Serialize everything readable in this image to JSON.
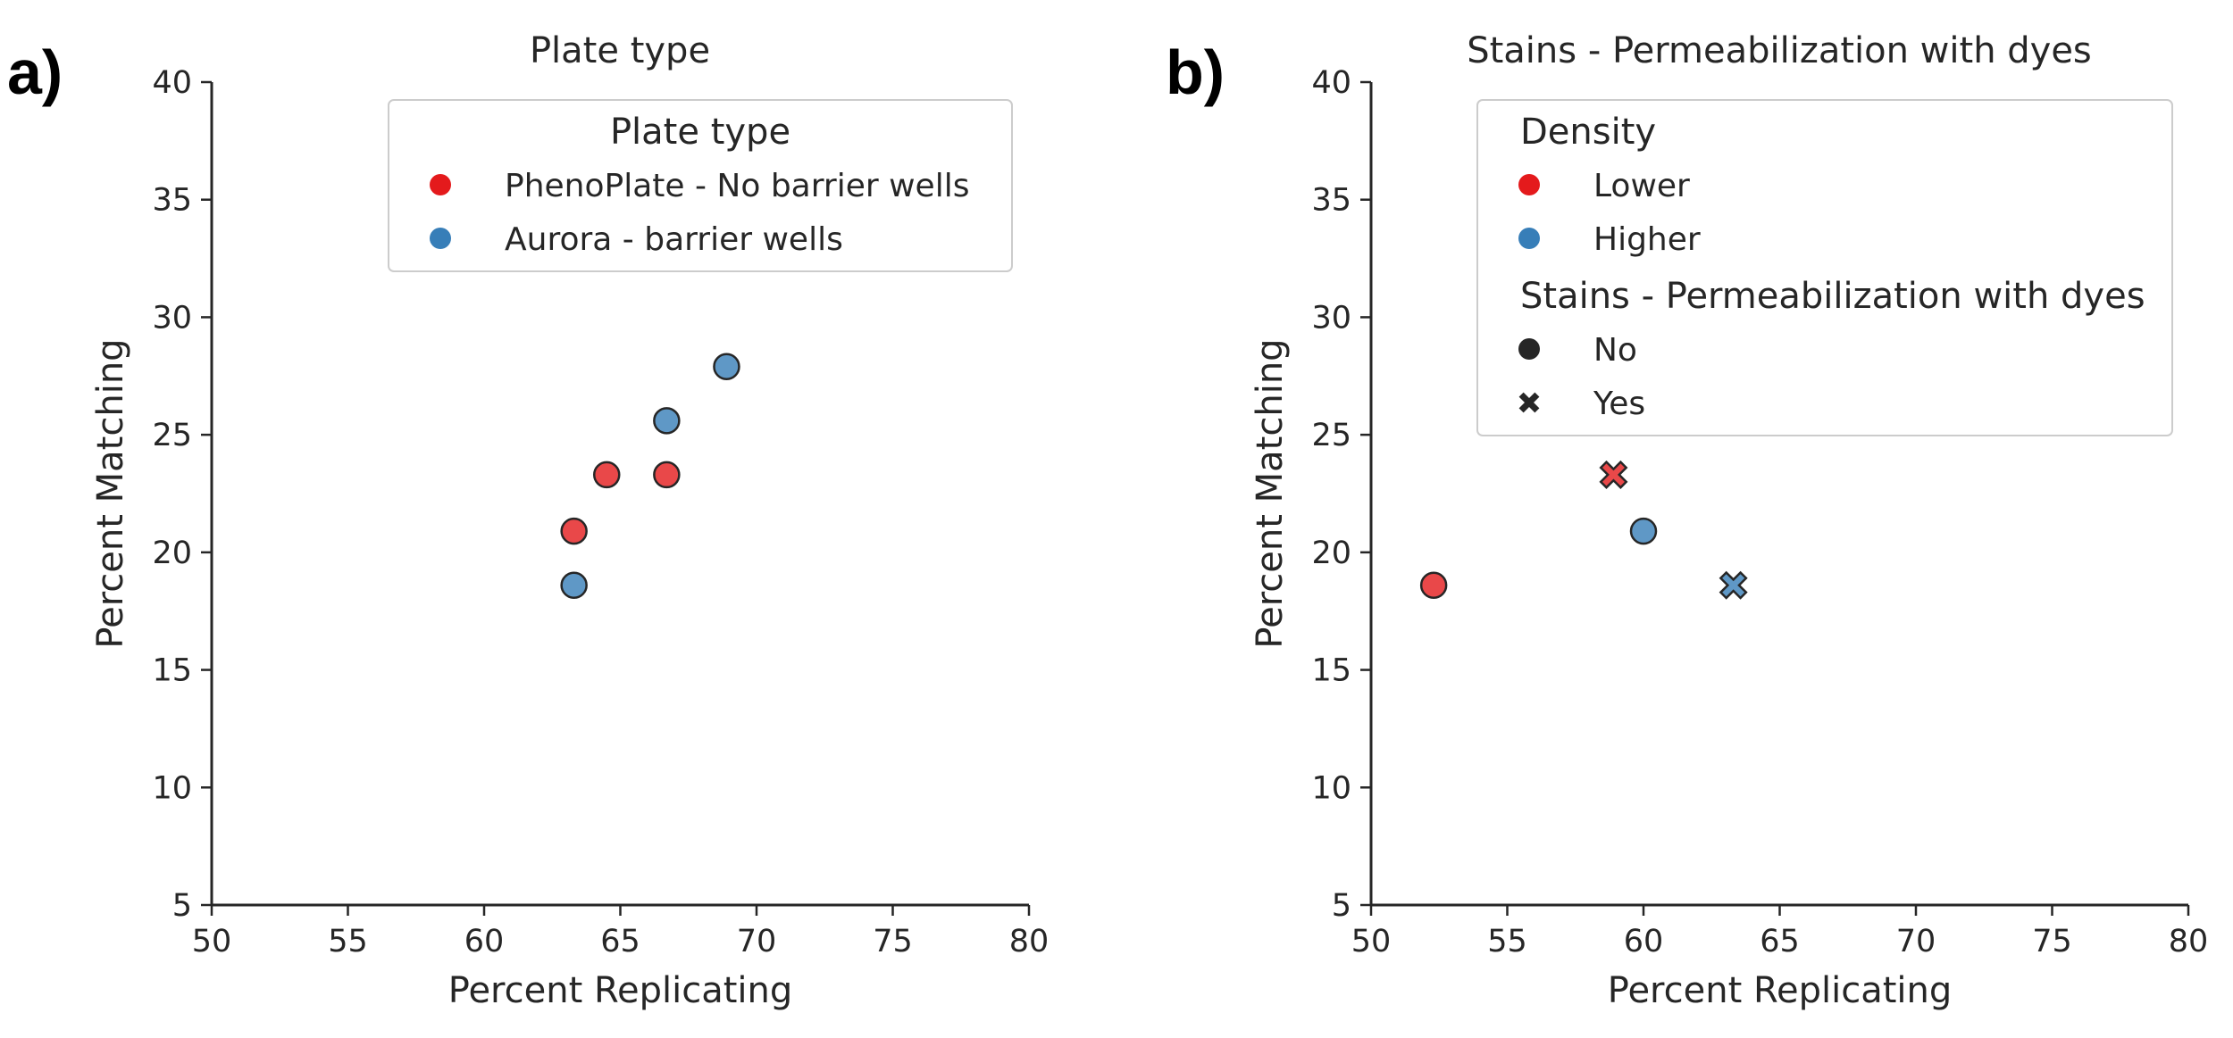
{
  "colors": {
    "red": "#e41a1c",
    "blue": "#377eb8",
    "edge": "#262626"
  },
  "chart_data": [
    {
      "type": "scatter",
      "panel_label": "a)",
      "title": "Plate type",
      "xlabel": "Percent Replicating",
      "ylabel": "Percent Matching",
      "xlim": [
        50,
        80
      ],
      "ylim": [
        5,
        40
      ],
      "xticks": [
        50,
        55,
        60,
        65,
        70,
        75,
        80
      ],
      "yticks": [
        5,
        10,
        15,
        20,
        25,
        30,
        35,
        40
      ],
      "legend": {
        "placement": "top-right",
        "groups": [
          {
            "title": "Plate type",
            "entries": [
              {
                "label": "PhenoPlate - No barrier wells",
                "color": "red",
                "marker": "circle"
              },
              {
                "label": "Aurora - barrier wells",
                "color": "blue",
                "marker": "circle"
              }
            ]
          }
        ]
      },
      "series": [
        {
          "name": "PhenoPlate - No barrier wells",
          "color": "red",
          "marker": "circle",
          "points": [
            {
              "x": 63.3,
              "y": 20.9
            },
            {
              "x": 64.5,
              "y": 23.3
            },
            {
              "x": 66.7,
              "y": 23.3
            }
          ]
        },
        {
          "name": "Aurora - barrier wells",
          "color": "blue",
          "marker": "circle",
          "points": [
            {
              "x": 63.3,
              "y": 18.6
            },
            {
              "x": 66.7,
              "y": 25.6
            },
            {
              "x": 68.9,
              "y": 27.9
            }
          ]
        }
      ]
    },
    {
      "type": "scatter",
      "panel_label": "b)",
      "title": "Stains - Permeabilization with dyes",
      "xlabel": "Percent Replicating",
      "ylabel": "Percent Matching",
      "xlim": [
        50,
        80
      ],
      "ylim": [
        5,
        40
      ],
      "xticks": [
        50,
        55,
        60,
        65,
        70,
        75,
        80
      ],
      "yticks": [
        5,
        10,
        15,
        20,
        25,
        30,
        35,
        40
      ],
      "legend": {
        "placement": "top-right",
        "groups": [
          {
            "title": "Density",
            "entries": [
              {
                "label": "Lower",
                "color": "red",
                "marker": "circle"
              },
              {
                "label": "Higher",
                "color": "blue",
                "marker": "circle"
              }
            ]
          },
          {
            "title": "Stains - Permeabilization with dyes",
            "entries": [
              {
                "label": "No",
                "color": "dark",
                "marker": "circle"
              },
              {
                "label": "Yes",
                "color": "dark",
                "marker": "cross"
              }
            ]
          }
        ]
      },
      "series": [
        {
          "name": "Lower",
          "color": "red",
          "points": [
            {
              "x": 52.3,
              "y": 18.6,
              "marker": "circle"
            },
            {
              "x": 58.9,
              "y": 23.3,
              "marker": "cross"
            }
          ]
        },
        {
          "name": "Higher",
          "color": "blue",
          "points": [
            {
              "x": 60.0,
              "y": 20.9,
              "marker": "circle"
            },
            {
              "x": 63.3,
              "y": 18.6,
              "marker": "cross"
            }
          ]
        }
      ]
    }
  ]
}
